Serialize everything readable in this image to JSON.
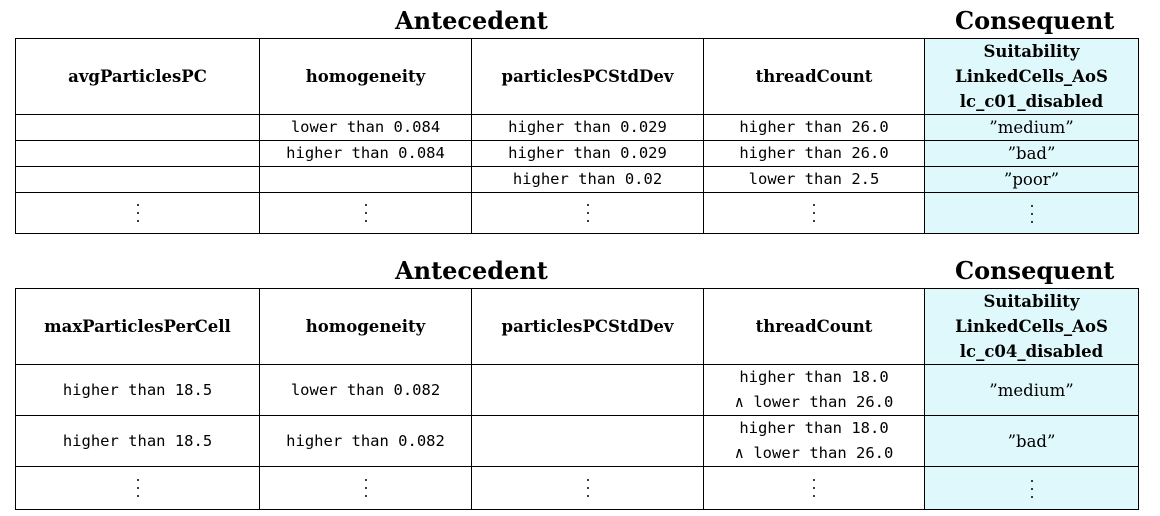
{
  "tables": [
    {
      "header_antecedent": "Antecedent",
      "header_consequent": "Consequent",
      "columns": [
        "avgParticlesPC",
        "homogeneity",
        "particlesPCStdDev",
        "threadCount"
      ],
      "consequent_column": [
        "Suitability",
        "LinkedCells_AoS",
        "lc_c01_disabled"
      ],
      "rows": [
        {
          "c1": "",
          "c2": "lower than 0.084",
          "c3": "higher than 0.029",
          "c4": "higher than 26.0",
          "cons": "”medium”"
        },
        {
          "c1": "",
          "c2": "higher than 0.084",
          "c3": "higher than 0.029",
          "c4": "higher than 26.0",
          "cons": "”bad”"
        },
        {
          "c1": "",
          "c2": "",
          "c3": "higher than 0.02",
          "c4": "lower than 2.5",
          "cons": "”poor”"
        }
      ]
    },
    {
      "header_antecedent": "Antecedent",
      "header_consequent": "Consequent",
      "columns": [
        "maxParticlesPerCell",
        "homogeneity",
        "particlesPCStdDev",
        "threadCount"
      ],
      "consequent_column": [
        "Suitability",
        "LinkedCells_AoS",
        "lc_c04_disabled"
      ],
      "rows": [
        {
          "c1": "higher than 18.5",
          "c2": "lower than 0.082",
          "c3": "",
          "c4a": "higher than 18.0",
          "c4b": "∧ lower than 26.0",
          "cons": "”medium”"
        },
        {
          "c1": "higher than 18.5",
          "c2": "higher than 0.082",
          "c3": "",
          "c4a": "higher than 18.0",
          "c4b": "∧ lower than 26.0",
          "cons": "”bad”"
        }
      ]
    }
  ]
}
